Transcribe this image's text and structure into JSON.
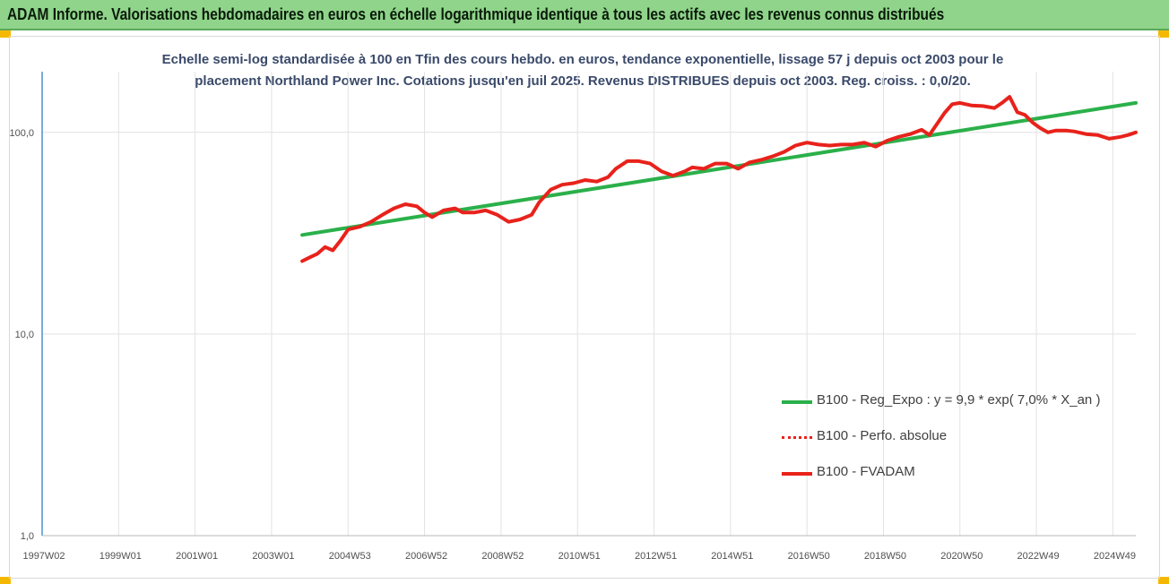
{
  "header": {
    "title": "ADAM Informe. Valorisations hebdomadaires en euros en échelle logarithmique identique à tous les actifs avec les revenus connus distribués"
  },
  "chart_data": {
    "type": "line",
    "title_line1": "Echelle semi-log standardisée à 100 en Tfin des cours hebdo. en euros, tendance exponentielle, lissage 57 j depuis oct 2003 pour le",
    "title_line2": "placement Northland Power Inc. Cotations jusqu'en juil 2025. Revenus DISTRIBUES depuis oct 2003. Reg. croiss. : 0,0/20.",
    "y_scale": "log",
    "ylim": [
      1,
      200
    ],
    "y_ticks": [
      1,
      10,
      100
    ],
    "y_tick_labels": [
      "1,0",
      "10,0",
      "100,0"
    ],
    "xlim": [
      1997.0,
      2025.6
    ],
    "x_tick_positions": [
      1997.0,
      1999.0,
      2001.0,
      2003.0,
      2005.0,
      2007.0,
      2009.0,
      2011.0,
      2013.0,
      2015.0,
      2017.0,
      2019.0,
      2021.0,
      2023.0,
      2025.0
    ],
    "x_tick_labels": [
      "1997W02",
      "1999W01",
      "2001W01",
      "2003W01",
      "2004W53",
      "2006W52",
      "2008W52",
      "2010W51",
      "2012W51",
      "2014W51",
      "2016W50",
      "2018W50",
      "2020W50",
      "2022W49",
      "2024W49"
    ],
    "grid": true,
    "legend_position": "bottom-right",
    "series": [
      {
        "name": "B100 - Reg_Expo : y = 9,9 * exp( 7,0% *  X_an )",
        "color": "#2bb04a",
        "style": "solid",
        "x": [
          2003.8,
          2025.6
        ],
        "values": [
          31,
          140
        ]
      },
      {
        "name": "B100 - Perfo. absolue",
        "color": "#e8221b",
        "style": "dotted",
        "x": [],
        "values": []
      },
      {
        "name": "B100 - FVADAM",
        "color": "#e8221b",
        "style": "solid",
        "x": [
          2003.8,
          2004.0,
          2004.2,
          2004.4,
          2004.6,
          2004.8,
          2005.0,
          2005.3,
          2005.6,
          2005.9,
          2006.2,
          2006.5,
          2006.8,
          2007.0,
          2007.2,
          2007.5,
          2007.8,
          2008.0,
          2008.3,
          2008.6,
          2008.9,
          2009.2,
          2009.5,
          2009.8,
          2010.0,
          2010.3,
          2010.6,
          2010.9,
          2011.2,
          2011.5,
          2011.8,
          2012.0,
          2012.3,
          2012.6,
          2012.9,
          2013.2,
          2013.5,
          2013.8,
          2014.0,
          2014.3,
          2014.6,
          2014.9,
          2015.2,
          2015.5,
          2015.8,
          2016.1,
          2016.4,
          2016.7,
          2017.0,
          2017.3,
          2017.6,
          2017.9,
          2018.2,
          2018.5,
          2018.8,
          2019.1,
          2019.4,
          2019.7,
          2020.0,
          2020.2,
          2020.4,
          2020.6,
          2020.8,
          2021.0,
          2021.3,
          2021.6,
          2021.9,
          2022.1,
          2022.3,
          2022.5,
          2022.7,
          2022.9,
          2023.1,
          2023.3,
          2023.5,
          2023.8,
          2024.0,
          2024.3,
          2024.6,
          2024.9,
          2025.2,
          2025.4,
          2025.6
        ],
        "values": [
          23,
          24,
          25,
          27,
          26,
          29,
          33,
          34,
          36,
          39,
          42,
          44,
          43,
          40,
          38,
          41,
          42,
          40,
          40,
          41,
          39,
          36,
          37,
          39,
          45,
          52,
          55,
          56,
          58,
          57,
          60,
          66,
          72,
          72,
          70,
          64,
          61,
          64,
          67,
          66,
          70,
          70,
          66,
          71,
          73,
          76,
          80,
          86,
          89,
          87,
          86,
          87,
          87,
          89,
          85,
          91,
          95,
          98,
          103,
          97,
          110,
          125,
          138,
          140,
          136,
          135,
          132,
          140,
          150,
          126,
          122,
          112,
          105,
          100,
          102,
          102,
          101,
          98,
          97,
          93,
          95,
          97,
          100
        ]
      }
    ]
  }
}
